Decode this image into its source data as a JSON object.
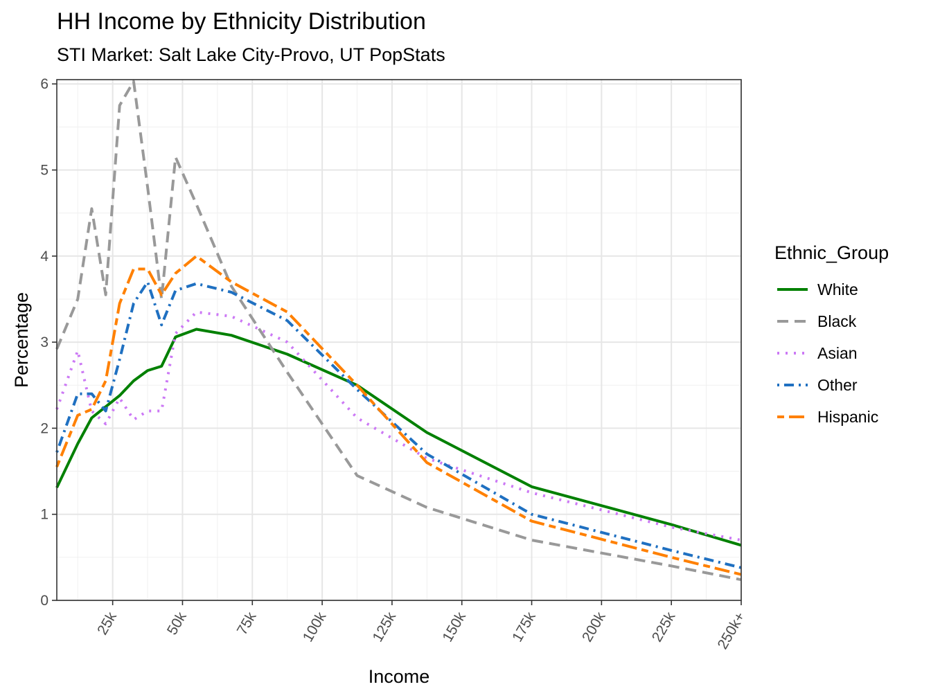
{
  "chart_data": {
    "type": "line",
    "title": "HH Income by Ethnicity Distribution",
    "subtitle": "STI Market: Salt Lake City-Provo, UT PopStats",
    "xlabel": "Income",
    "ylabel": "Percentage",
    "xlim": [
      5,
      250
    ],
    "ylim": [
      0,
      6.05
    ],
    "x_ticks": [
      {
        "value": 25,
        "label": "25k"
      },
      {
        "value": 50,
        "label": "50k"
      },
      {
        "value": 75,
        "label": "75k"
      },
      {
        "value": 100,
        "label": "100k"
      },
      {
        "value": 125,
        "label": "125k"
      },
      {
        "value": 150,
        "label": "150k"
      },
      {
        "value": 175,
        "label": "175k"
      },
      {
        "value": 200,
        "label": "200k"
      },
      {
        "value": 225,
        "label": "225k"
      },
      {
        "value": 250,
        "label": "250k+"
      }
    ],
    "y_ticks": [
      0,
      1,
      2,
      3,
      4,
      5,
      6
    ],
    "x": [
      5,
      12.5,
      17.5,
      22.5,
      27.5,
      32.5,
      37.5,
      42.5,
      47.5,
      55,
      67.5,
      87.5,
      112.5,
      137.5,
      175,
      225,
      250
    ],
    "legend": {
      "title": "Ethnic_Group",
      "position": "right"
    },
    "grid": true,
    "series": [
      {
        "name": "White",
        "color": "#008000",
        "dash": "solid",
        "values": [
          1.31,
          1.82,
          2.12,
          2.25,
          2.38,
          2.55,
          2.67,
          2.72,
          3.06,
          3.15,
          3.08,
          2.86,
          2.5,
          1.95,
          1.32,
          0.88,
          0.64
        ]
      },
      {
        "name": "Black",
        "color": "#999999",
        "dash": "dashed",
        "values": [
          2.92,
          3.5,
          4.55,
          3.55,
          5.75,
          6.03,
          4.8,
          3.5,
          5.15,
          4.6,
          3.65,
          2.65,
          1.45,
          1.08,
          0.7,
          0.4,
          0.24
        ]
      },
      {
        "name": "Asian",
        "color": "#CC79F5",
        "dash": "dotted",
        "values": [
          2.22,
          2.9,
          2.2,
          2.05,
          2.35,
          2.1,
          2.2,
          2.2,
          3.1,
          3.35,
          3.3,
          3.0,
          2.12,
          1.65,
          1.25,
          0.85,
          0.7
        ]
      },
      {
        "name": "Other",
        "color": "#1F70C1",
        "dash": "dotdash",
        "values": [
          1.72,
          2.4,
          2.4,
          2.2,
          2.8,
          3.45,
          3.7,
          3.2,
          3.6,
          3.68,
          3.58,
          3.25,
          2.45,
          1.7,
          1.0,
          0.58,
          0.38
        ]
      },
      {
        "name": "Hispanic",
        "color": "#FF8000",
        "dash": "twodash",
        "values": [
          1.55,
          2.15,
          2.22,
          2.55,
          3.45,
          3.85,
          3.85,
          3.55,
          3.8,
          4.0,
          3.7,
          3.35,
          2.5,
          1.6,
          0.92,
          0.5,
          0.3
        ]
      }
    ]
  }
}
